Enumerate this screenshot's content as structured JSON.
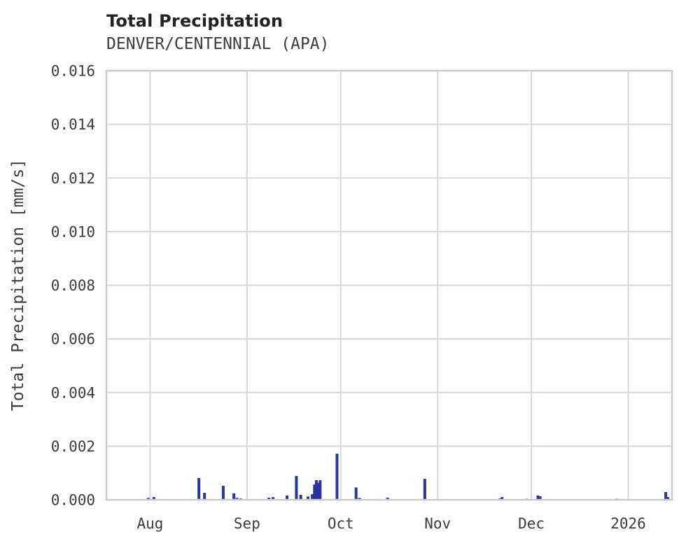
{
  "chart_data": {
    "type": "bar",
    "title": "Total Precipitation",
    "subtitle": "DENVER/CENTENNIAL (APA)",
    "ylabel": "Total Precipitation [mm/s]",
    "xlabel": "",
    "ylim": [
      0,
      0.016
    ],
    "grid": true,
    "legend": "none",
    "colors": {
      "bar": "#2b35a0",
      "grid": "#d8d8d8",
      "spine": "#cbcbcb",
      "title_text": "#222222",
      "tick_text": "#3d3d3d",
      "background": "#ffffff"
    },
    "y_ticks": [
      {
        "value": 0.0,
        "label": "0.000"
      },
      {
        "value": 0.002,
        "label": "0.002"
      },
      {
        "value": 0.004,
        "label": "0.004"
      },
      {
        "value": 0.006,
        "label": "0.006"
      },
      {
        "value": 0.008,
        "label": "0.008"
      },
      {
        "value": 0.01,
        "label": "0.010"
      },
      {
        "value": 0.012,
        "label": "0.012"
      },
      {
        "value": 0.014,
        "label": "0.014"
      },
      {
        "value": 0.016,
        "label": "0.016"
      }
    ],
    "x_axis": {
      "unit": "days",
      "t_min": 0,
      "t_max": 181,
      "ticks": [
        {
          "t": 14,
          "label": "Aug"
        },
        {
          "t": 45,
          "label": "Sep"
        },
        {
          "t": 75,
          "label": "Oct"
        },
        {
          "t": 106,
          "label": "Nov"
        },
        {
          "t": 136,
          "label": "Dec"
        },
        {
          "t": 167,
          "label": "2026"
        }
      ]
    },
    "bar_width_days": 0.9,
    "points": [
      {
        "date": "Jul 31",
        "t": 13.4,
        "value": 7e-05
      },
      {
        "date": "Aug 2",
        "t": 15.2,
        "value": 0.0001
      },
      {
        "date": "Aug 16",
        "t": 29.6,
        "value": 0.00081
      },
      {
        "date": "Aug 18",
        "t": 31.4,
        "value": 0.00026
      },
      {
        "date": "Aug 24",
        "t": 37.4,
        "value": 0.00052
      },
      {
        "date": "Aug 27",
        "t": 40.8,
        "value": 0.00024
      },
      {
        "date": "Aug 28",
        "t": 41.8,
        "value": 7e-05
      },
      {
        "date": "Aug 30",
        "t": 43.0,
        "value": 5e-05
      },
      {
        "date": "Sep 8",
        "t": 52.0,
        "value": 8e-05
      },
      {
        "date": "Sep 9",
        "t": 53.3,
        "value": 0.0001
      },
      {
        "date": "Sep 13",
        "t": 57.8,
        "value": 0.00016
      },
      {
        "date": "Sep 16",
        "t": 60.8,
        "value": 0.00089
      },
      {
        "date": "Sep 18",
        "t": 62.2,
        "value": 0.00018
      },
      {
        "date": "Sep 20",
        "t": 64.5,
        "value": 0.00012
      },
      {
        "date": "Sep 21",
        "t": 65.9,
        "value": 0.00021
      },
      {
        "date": "Sep 22",
        "t": 66.6,
        "value": 0.00057
      },
      {
        "date": "Sep 23",
        "t": 67.2,
        "value": 0.00073
      },
      {
        "date": "Sep 23",
        "t": 67.8,
        "value": 0.00063
      },
      {
        "date": "Sep 24",
        "t": 68.4,
        "value": 0.00073
      },
      {
        "date": "Sep 30",
        "t": 73.8,
        "value": 0.00172
      },
      {
        "date": "Oct 5",
        "t": 79.9,
        "value": 0.00046
      },
      {
        "date": "Oct 7",
        "t": 81.0,
        "value": 7e-05
      },
      {
        "date": "Oct 16",
        "t": 90.0,
        "value": 8e-05
      },
      {
        "date": "Oct 27",
        "t": 101.9,
        "value": 0.00078
      },
      {
        "date": "Nov 21",
        "t": 126.0,
        "value": 5e-05
      },
      {
        "date": "Nov 21",
        "t": 126.6,
        "value": 0.0001
      },
      {
        "date": "Nov 29",
        "t": 134.6,
        "value": 4e-05
      },
      {
        "date": "Dec 3",
        "t": 138.1,
        "value": 0.00016
      },
      {
        "date": "Dec 3",
        "t": 138.8,
        "value": 0.00013
      },
      {
        "date": "Dec 28",
        "t": 163.4,
        "value": 4e-05
      },
      {
        "date": "Jan 13",
        "t": 179.0,
        "value": 0.00029
      },
      {
        "date": "Jan 13",
        "t": 179.7,
        "value": 0.0001
      }
    ]
  }
}
